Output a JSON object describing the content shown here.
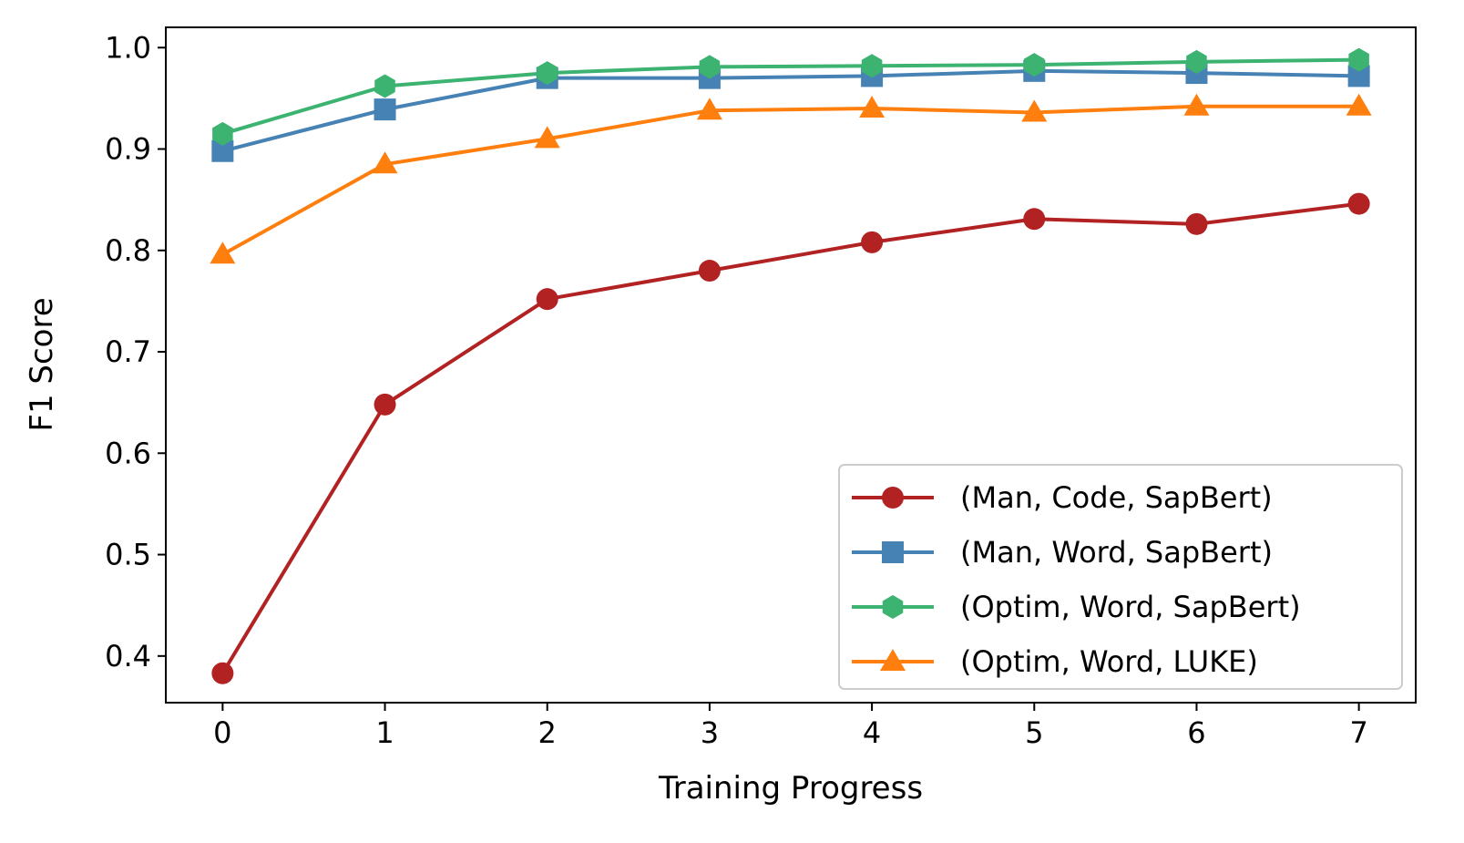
{
  "chart_data": {
    "type": "line",
    "xlabel": "Training Progress",
    "ylabel": "F1 Score",
    "x": [
      0,
      1,
      2,
      3,
      4,
      5,
      6,
      7
    ],
    "xlim": [
      -0.35,
      7.35
    ],
    "ylim": [
      0.354,
      1.02
    ],
    "xticks": [
      "0",
      "1",
      "2",
      "3",
      "4",
      "5",
      "6",
      "7"
    ],
    "yticks": [
      "0.4",
      "0.5",
      "0.6",
      "0.7",
      "0.8",
      "0.9",
      "1.0"
    ],
    "grid": false,
    "legend_position": "lower-right",
    "series": [
      {
        "name": "(Man, Code, SapBert)",
        "color": "#b22222",
        "marker": "circle",
        "values": [
          0.383,
          0.648,
          0.752,
          0.78,
          0.808,
          0.831,
          0.826,
          0.846
        ]
      },
      {
        "name": "(Man, Word, SapBert)",
        "color": "#4682b4",
        "marker": "square",
        "values": [
          0.898,
          0.939,
          0.97,
          0.97,
          0.972,
          0.977,
          0.975,
          0.972
        ]
      },
      {
        "name": "(Optim, Word, SapBert)",
        "color": "#3cb371",
        "marker": "hexagon",
        "values": [
          0.915,
          0.962,
          0.975,
          0.981,
          0.982,
          0.983,
          0.986,
          0.988
        ]
      },
      {
        "name": "(Optim, Word, LUKE)",
        "color": "#ff7f0e",
        "marker": "triangle",
        "values": [
          0.796,
          0.885,
          0.91,
          0.938,
          0.94,
          0.936,
          0.942,
          0.942
        ]
      }
    ]
  }
}
